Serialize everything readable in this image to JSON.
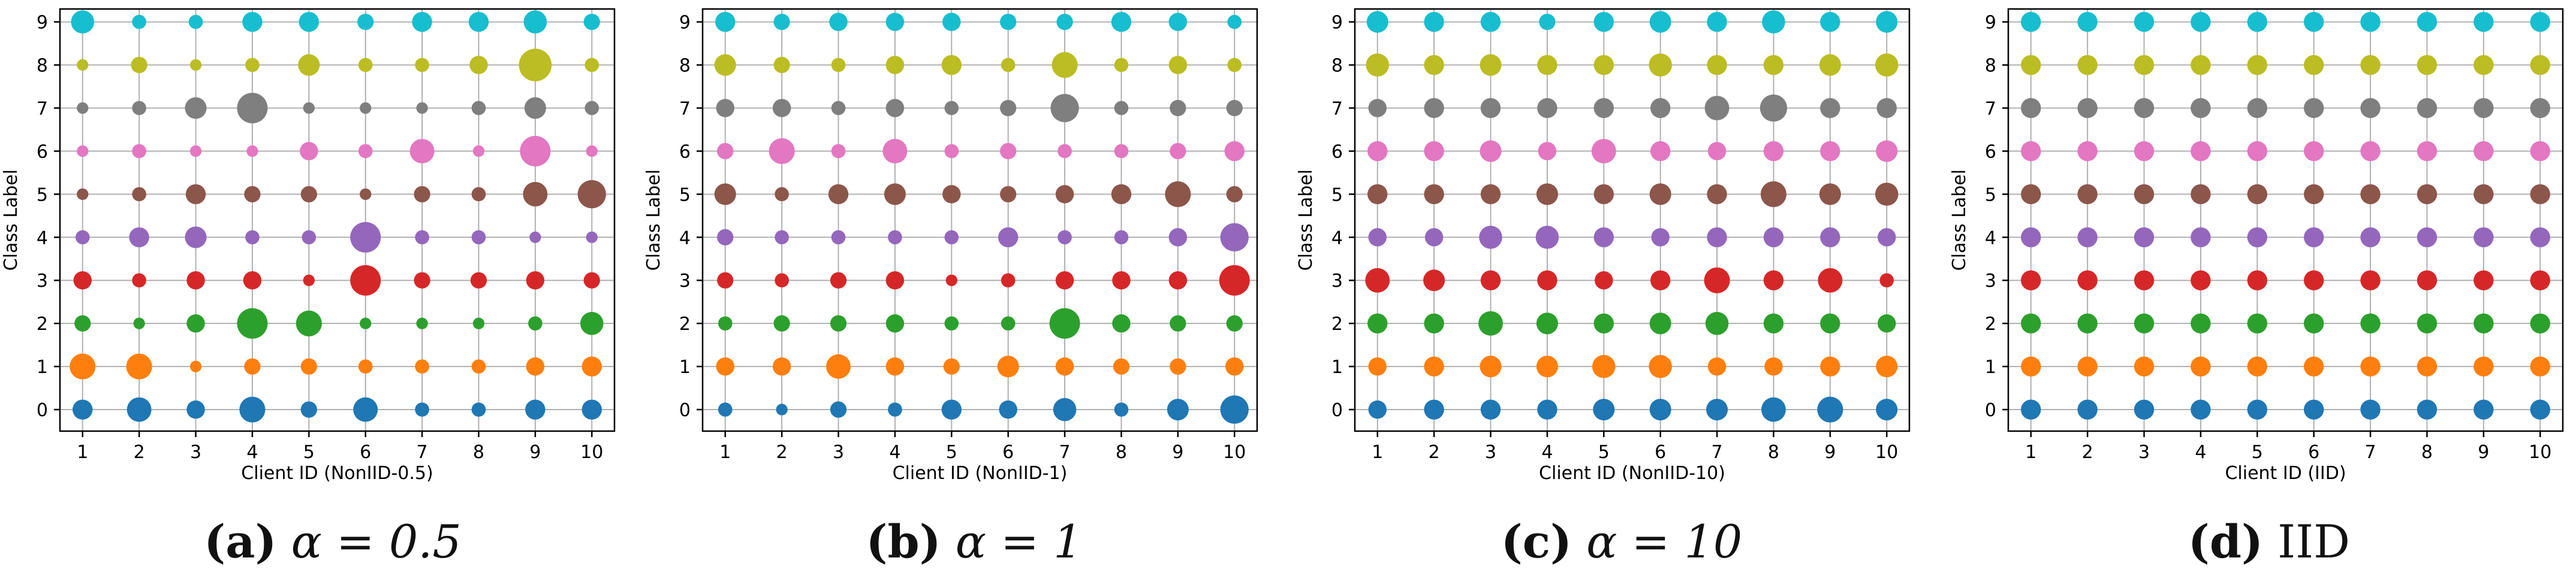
{
  "figure": {
    "captions": [
      {
        "letter": "(a)",
        "text": "α = 0.5"
      },
      {
        "letter": "(b)",
        "text": "α = 1"
      },
      {
        "letter": "(c)",
        "text": "α = 10"
      },
      {
        "letter": "(d)",
        "text": "IID"
      }
    ]
  },
  "chart_data": [
    {
      "type": "scatter",
      "title": "",
      "xlabel": "Client ID (NonIID-0.5)",
      "ylabel": "Class Label",
      "x_ticks": [
        1,
        2,
        3,
        4,
        5,
        6,
        7,
        8,
        9,
        10
      ],
      "y_ticks": [
        0,
        1,
        2,
        3,
        4,
        5,
        6,
        7,
        8,
        9
      ],
      "xlim": [
        0.6,
        10.4
      ],
      "ylim": [
        -0.5,
        9.3
      ],
      "grid": true,
      "encoding": "marker area ∝ sample count of class on client",
      "class_colors": [
        "#1f77b4",
        "#ff7f0e",
        "#2ca02c",
        "#d62728",
        "#9467bd",
        "#8c564b",
        "#e377c2",
        "#7f7f7f",
        "#bcbd22",
        "#17becf"
      ],
      "size_matrix": [
        [
          6,
          9,
          5,
          10,
          4,
          9,
          3,
          3,
          6,
          6
        ],
        [
          10,
          10,
          2,
          4,
          4,
          3,
          3,
          3,
          5,
          6
        ],
        [
          4,
          2,
          5,
          14,
          10,
          2,
          2,
          2,
          3,
          8
        ],
        [
          5,
          3,
          5,
          5,
          2,
          14,
          4,
          4,
          5,
          4
        ],
        [
          3,
          6,
          7,
          3,
          3,
          14,
          3,
          3,
          2,
          2
        ],
        [
          2,
          3,
          6,
          4,
          4,
          2,
          4,
          3,
          9,
          12
        ],
        [
          2,
          3,
          2,
          2,
          5,
          3,
          9,
          2,
          14,
          2
        ],
        [
          2,
          3,
          7,
          14,
          2,
          2,
          2,
          3,
          7,
          3
        ],
        [
          2,
          4,
          2,
          3,
          7,
          3,
          3,
          5,
          16,
          3
        ],
        [
          8,
          3,
          3,
          6,
          6,
          4,
          6,
          6,
          8,
          4
        ]
      ]
    },
    {
      "type": "scatter",
      "title": "",
      "xlabel": "Client ID (NonIID-1)",
      "ylabel": "Class Label",
      "x_ticks": [
        1,
        2,
        3,
        4,
        5,
        6,
        7,
        8,
        9,
        10
      ],
      "y_ticks": [
        0,
        1,
        2,
        3,
        4,
        5,
        6,
        7,
        8,
        9
      ],
      "xlim": [
        0.6,
        10.4
      ],
      "ylim": [
        -0.5,
        9.3
      ],
      "grid": true,
      "encoding": "marker area ∝ sample count of class on client",
      "class_colors": [
        "#1f77b4",
        "#ff7f0e",
        "#2ca02c",
        "#d62728",
        "#9467bd",
        "#8c564b",
        "#e377c2",
        "#7f7f7f",
        "#bcbd22",
        "#17becf"
      ],
      "size_matrix": [
        [
          3,
          2,
          4,
          3,
          6,
          5,
          8,
          3,
          7,
          12
        ],
        [
          5,
          5,
          9,
          5,
          4,
          7,
          5,
          4,
          4,
          5
        ],
        [
          3,
          4,
          4,
          5,
          3,
          3,
          14,
          5,
          4,
          4
        ],
        [
          4,
          3,
          4,
          5,
          2,
          3,
          5,
          5,
          5,
          14
        ],
        [
          4,
          3,
          3,
          3,
          3,
          6,
          3,
          3,
          5,
          12
        ],
        [
          7,
          3,
          6,
          7,
          5,
          4,
          5,
          6,
          10,
          4
        ],
        [
          4,
          10,
          3,
          9,
          3,
          4,
          3,
          3,
          4,
          6
        ],
        [
          5,
          5,
          3,
          5,
          3,
          4,
          12,
          3,
          4,
          4
        ],
        [
          7,
          4,
          3,
          5,
          6,
          3,
          10,
          3,
          5,
          3
        ],
        [
          6,
          4,
          5,
          5,
          5,
          4,
          4,
          6,
          5,
          3
        ]
      ]
    },
    {
      "type": "scatter",
      "title": "",
      "xlabel": "Client ID (NonIID-10)",
      "ylabel": "Class Label",
      "x_ticks": [
        1,
        2,
        3,
        4,
        5,
        6,
        7,
        8,
        9,
        10
      ],
      "y_ticks": [
        0,
        1,
        2,
        3,
        4,
        5,
        6,
        7,
        8,
        9
      ],
      "xlim": [
        0.6,
        10.4
      ],
      "ylim": [
        -0.5,
        9.3
      ],
      "grid": true,
      "encoding": "marker area ∝ sample count of class on client",
      "class_colors": [
        "#1f77b4",
        "#ff7f0e",
        "#2ca02c",
        "#d62728",
        "#9467bd",
        "#8c564b",
        "#e377c2",
        "#7f7f7f",
        "#bcbd22",
        "#17becf"
      ],
      "size_matrix": [
        [
          5,
          6,
          6,
          6,
          7,
          7,
          7,
          9,
          10,
          7
        ],
        [
          5,
          6,
          7,
          7,
          8,
          8,
          5,
          5,
          6,
          7
        ],
        [
          6,
          6,
          9,
          7,
          6,
          7,
          8,
          6,
          6,
          5
        ],
        [
          9,
          7,
          6,
          6,
          5,
          6,
          10,
          6,
          9,
          3
        ],
        [
          5,
          5,
          8,
          8,
          6,
          5,
          6,
          6,
          6,
          5
        ],
        [
          6,
          6,
          6,
          7,
          6,
          7,
          6,
          10,
          7,
          8
        ],
        [
          6,
          6,
          7,
          5,
          9,
          6,
          5,
          6,
          6,
          7
        ],
        [
          5,
          6,
          6,
          6,
          6,
          6,
          9,
          11,
          6,
          6
        ],
        [
          8,
          6,
          7,
          6,
          6,
          8,
          6,
          6,
          7,
          8
        ],
        [
          7,
          6,
          6,
          4,
          6,
          7,
          6,
          8,
          6,
          7
        ]
      ]
    },
    {
      "type": "scatter",
      "title": "",
      "xlabel": "Client ID (IID)",
      "ylabel": "Class Label",
      "x_ticks": [
        1,
        2,
        3,
        4,
        5,
        6,
        7,
        8,
        9,
        10
      ],
      "y_ticks": [
        0,
        1,
        2,
        3,
        4,
        5,
        6,
        7,
        8,
        9
      ],
      "xlim": [
        0.6,
        10.4
      ],
      "ylim": [
        -0.5,
        9.3
      ],
      "grid": true,
      "encoding": "marker area ∝ sample count of class on client",
      "class_colors": [
        "#1f77b4",
        "#ff7f0e",
        "#2ca02c",
        "#d62728",
        "#9467bd",
        "#8c564b",
        "#e377c2",
        "#7f7f7f",
        "#bcbd22",
        "#17becf"
      ],
      "size_matrix": [
        [
          6,
          6,
          6,
          6,
          6,
          6,
          6,
          6,
          6,
          6
        ],
        [
          6,
          6,
          6,
          6,
          6,
          6,
          6,
          6,
          6,
          6
        ],
        [
          6,
          6,
          6,
          6,
          6,
          6,
          6,
          6,
          6,
          6
        ],
        [
          6,
          6,
          6,
          6,
          6,
          6,
          6,
          6,
          6,
          6
        ],
        [
          6,
          6,
          6,
          6,
          6,
          6,
          6,
          6,
          6,
          6
        ],
        [
          6,
          6,
          6,
          6,
          6,
          6,
          6,
          6,
          6,
          6
        ],
        [
          6,
          6,
          6,
          6,
          6,
          6,
          6,
          6,
          6,
          6
        ],
        [
          6,
          6,
          6,
          6,
          6,
          6,
          6,
          6,
          6,
          6
        ],
        [
          6,
          6,
          6,
          6,
          6,
          6,
          6,
          6,
          6,
          6
        ],
        [
          6,
          6,
          6,
          6,
          6,
          6,
          6,
          6,
          6,
          6
        ]
      ]
    }
  ]
}
